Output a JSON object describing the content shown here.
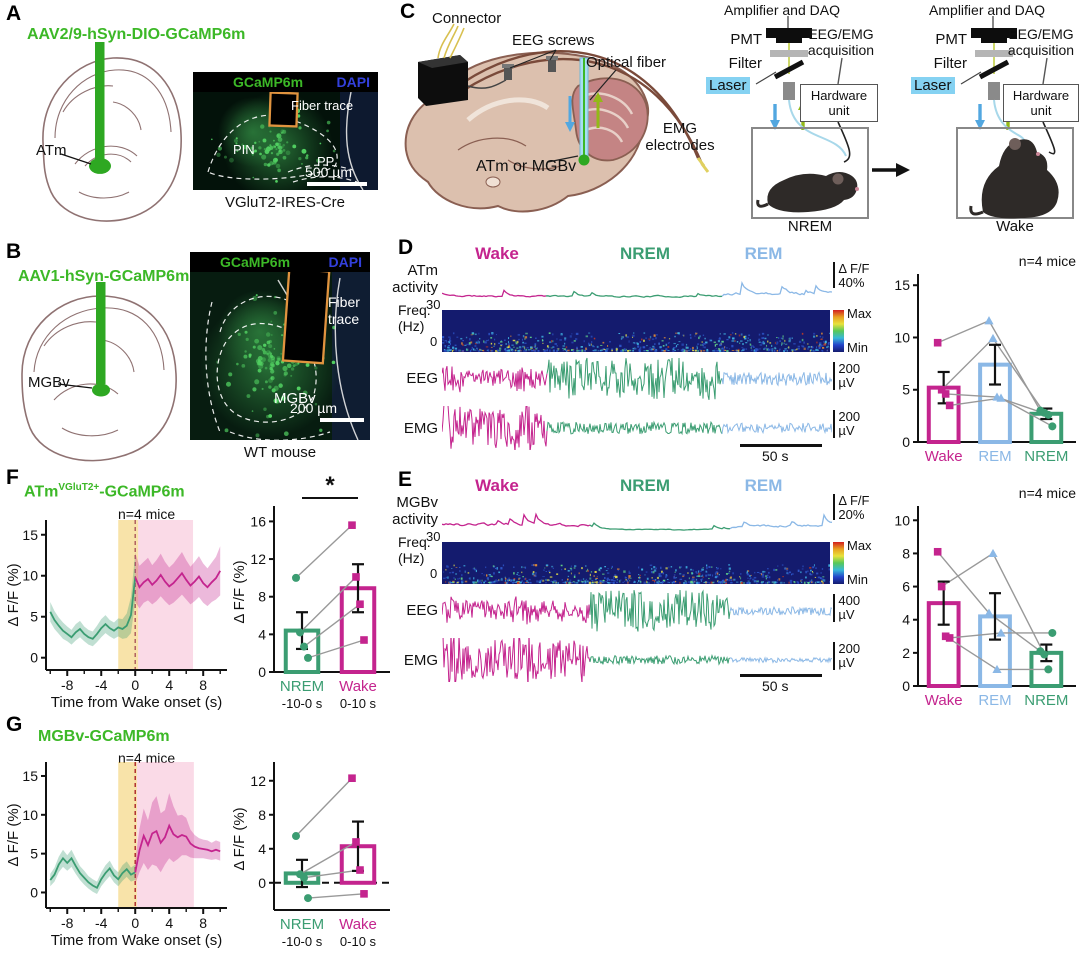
{
  "colors": {
    "wake_magenta": "#c4248e",
    "nrem_green": "#3b9d72",
    "rem_blue": "#8bb8e6",
    "gcamp_green": "#3cb827",
    "dapi_blue": "#3340dd",
    "fiber_orange": "#e0933f",
    "laser_bg": "#85d2f2",
    "spectrogram_bg": "#141b6e",
    "mouse_line_gray": "#999999"
  },
  "panel_a": {
    "label": "A",
    "title": "AAV2/9-hSyn-DIO-GCaMP6m",
    "region_label": "ATm",
    "image": {
      "marker_green": "GCaMP6m",
      "marker_blue": "DAPI",
      "fiber_label": "Fiber trace",
      "region1": "PIN",
      "region2": "PP",
      "scalebar": "500 µm",
      "caption": "VGluT2-IRES-Cre"
    }
  },
  "panel_b": {
    "label": "B",
    "title": "AAV1-hSyn-GCaMP6m",
    "region_label": "MGBv",
    "image": {
      "marker_green": "GCaMP6m",
      "marker_blue": "DAPI",
      "fiber_label": "Fiber trace",
      "region": "MGBv",
      "scalebar": "200 µm",
      "caption": "WT mouse"
    }
  },
  "panel_c": {
    "label": "C",
    "annotations": {
      "connector": "Connector",
      "eeg_screws": "EEG screws",
      "optical_fiber": "Optical fiber",
      "emg_electrodes": "EMG electrodes",
      "target": "ATm or MGBv"
    },
    "setups": [
      {
        "amplifier": "Amplifier and DAQ",
        "pmt": "PMT",
        "filter": "Filter",
        "laser": "Laser",
        "acquisition": "EEG/EMG acquisition",
        "hardware": "Hardware unit",
        "state": "NREM"
      },
      {
        "amplifier": "Amplifier and DAQ",
        "pmt": "PMT",
        "filter": "Filter",
        "laser": "Laser",
        "acquisition": "EEG/EMG acquisition",
        "hardware": "Hardware unit",
        "state": "Wake"
      }
    ]
  },
  "panel_d": {
    "label": "D",
    "trace_label1": "ATm",
    "trace_label2": "activity",
    "state_wake": "Wake",
    "state_nrem": "NREM",
    "state_rem": "REM",
    "dff1": "Δ F/F",
    "dff2": "40%",
    "freq_label": "Freq.",
    "freq_unit": "(Hz)",
    "freq_max": "30",
    "freq_min": "0",
    "cbar_max": "Max",
    "cbar_min": "Min",
    "eeg_label": "EEG",
    "eeg_scale": "200",
    "eeg_unit": "µV",
    "emg_label": "EMG",
    "emg_scale": "200",
    "emg_unit": "µV",
    "timebar": "50 s"
  },
  "panel_e": {
    "label": "E",
    "trace_label1": "MGBv",
    "trace_label2": "activity",
    "state_wake": "Wake",
    "state_nrem": "NREM",
    "state_rem": "REM",
    "dff1": "Δ F/F",
    "dff2": "20%",
    "freq_label": "Freq.",
    "freq_unit": "(Hz)",
    "freq_max": "30",
    "freq_min": "0",
    "cbar_max": "Max",
    "cbar_min": "Min",
    "eeg_label": "EEG",
    "eeg_scale": "400",
    "eeg_unit": "µV",
    "emg_label": "EMG",
    "emg_scale": "200",
    "emg_unit": "µV",
    "timebar": "50 s"
  },
  "panel_f": {
    "label": "F",
    "title_main": "ATm",
    "title_sup": "VGluT2+",
    "title_rest": "-GCaMP6m",
    "n_label": "n=4 mice"
  },
  "panel_g": {
    "label": "G",
    "title": "MGBv-GCaMP6m",
    "n_label": "n=4 mice"
  },
  "chart_data": [
    {
      "id": "d_traces",
      "type": "trace-panel",
      "panel": "D",
      "subject": "ATm activity",
      "states": [
        "Wake",
        "NREM",
        "REM"
      ],
      "state_colors": [
        "#c4248e",
        "#3b9d72",
        "#8bb8e6"
      ],
      "segment_fractions": [
        0.27,
        0.45,
        0.28
      ],
      "rows": [
        "ΔF/F activity",
        "Spectrogram Freq (Hz) 0-30",
        "EEG",
        "EMG"
      ],
      "dff_scalebar": "Δ F/F 40%",
      "freq_axis": {
        "min": 0,
        "max": 30
      },
      "colorbar": [
        "Max",
        "Min"
      ],
      "eeg_scalebar": "200 µV",
      "emg_scalebar": "200 µV",
      "time_scalebar": "50 s",
      "activity_amps": [
        0.55,
        0.5,
        0.9
      ],
      "eeg_amps": [
        0.45,
        1,
        0.32
      ],
      "emg_amps": [
        1,
        0.3,
        0.24
      ]
    },
    {
      "id": "d_bar",
      "type": "bar",
      "panel": "D",
      "annotation": "n=4 mice",
      "categories": [
        "Wake",
        "REM",
        "NREM"
      ],
      "bar_colors": [
        "#c4248e",
        "#8bb8e6",
        "#3b9d72"
      ],
      "markers": [
        "square",
        "triangle",
        "circle"
      ],
      "values": [
        5.2,
        7.4,
        2.7
      ],
      "errors": [
        1.5,
        1.9,
        0.5
      ],
      "mice": [
        [
          9.5,
          11.6,
          3.0
        ],
        [
          5.0,
          9.9,
          2.8
        ],
        [
          4.6,
          4.3,
          2.6
        ],
        [
          3.5,
          4.2,
          1.5
        ]
      ],
      "ylim": [
        0,
        15.5
      ],
      "yticks": [
        0,
        5,
        10,
        15
      ]
    },
    {
      "id": "e_traces",
      "type": "trace-panel",
      "panel": "E",
      "subject": "MGBv activity",
      "states": [
        "Wake",
        "NREM",
        "REM"
      ],
      "state_colors": [
        "#c4248e",
        "#3b9d72",
        "#8bb8e6"
      ],
      "segment_fractions": [
        0.38,
        0.36,
        0.26
      ],
      "rows": [
        "ΔF/F activity",
        "Spectrogram Freq (Hz) 0-30",
        "EEG",
        "EMG"
      ],
      "dff_scalebar": "Δ F/F 20%",
      "freq_axis": {
        "min": 0,
        "max": 30
      },
      "colorbar": [
        "Max",
        "Min"
      ],
      "eeg_scalebar": "400 µV",
      "emg_scalebar": "200 µV",
      "time_scalebar": "50 s",
      "activity_amps": [
        1,
        0.35,
        0.85
      ],
      "eeg_amps": [
        0.5,
        1,
        0.2
      ],
      "emg_amps": [
        1,
        0.22,
        0.12
      ]
    },
    {
      "id": "e_bar",
      "type": "bar",
      "panel": "E",
      "annotation": "n=4 mice",
      "categories": [
        "Wake",
        "REM",
        "NREM"
      ],
      "bar_colors": [
        "#c4248e",
        "#8bb8e6",
        "#3b9d72"
      ],
      "markers": [
        "square",
        "triangle",
        "circle"
      ],
      "values": [
        5.0,
        4.2,
        2.0
      ],
      "errors": [
        1.3,
        1.4,
        0.5
      ],
      "mice": [
        [
          8.1,
          4.4,
          2.1
        ],
        [
          6.0,
          8.0,
          1.9
        ],
        [
          3.0,
          1.0,
          1.0
        ],
        [
          2.9,
          3.2,
          3.2
        ]
      ],
      "ylim": [
        0,
        10.5
      ],
      "yticks": [
        0,
        2,
        4,
        6,
        8,
        10
      ]
    },
    {
      "id": "f_line",
      "type": "line",
      "panel": "F",
      "annotation": "n=4 mice",
      "xlabel": "Time from Wake onset (s)",
      "ylabel": "Δ F/F (%)",
      "xlim": [
        -10.5,
        10.8
      ],
      "ylim": [
        -1.5,
        16.8
      ],
      "xticks": [
        -8,
        -4,
        0,
        4,
        8
      ],
      "yticks": [
        0,
        5,
        10,
        15
      ],
      "shades": [
        {
          "x0": -2,
          "x1": 0.35,
          "color": "#f0c040",
          "opacity": 0.45
        },
        {
          "x0": 0.35,
          "x1": 6.8,
          "color": "#f2a2c4",
          "opacity": 0.4
        }
      ],
      "vline_x": 0,
      "vline_color": "#b06060",
      "series": [
        {
          "name": "NREM",
          "color": "#3b9d72",
          "x_start": -10,
          "x_step": 0.5,
          "mean": [
            5.6,
            4.6,
            3.9,
            3.3,
            2.9,
            2.5,
            3.1,
            3.5,
            2.9,
            2.5,
            2.3,
            2.9,
            3.6,
            4.1,
            3.6,
            3.3,
            3.7,
            3.5,
            3.9,
            5.2,
            9.8
          ],
          "sd": [
            1.2,
            1.1,
            1.0,
            1.0,
            0.9,
            0.9,
            1.0,
            1.0,
            0.9,
            0.9,
            0.9,
            1.0,
            1.1,
            1.1,
            1.0,
            1.0,
            1.1,
            1.2,
            1.5,
            2.2,
            3.0
          ]
        },
        {
          "name": "Wake",
          "color": "#c4248e",
          "x_start": 0,
          "x_step": 0.5,
          "mean": [
            9.8,
            8.6,
            9.2,
            9.6,
            8.9,
            9.4,
            10.1,
            9.3,
            8.7,
            9.1,
            9.7,
            10.3,
            9.5,
            8.8,
            9.3,
            9.9,
            9.1,
            8.6,
            9.2,
            9.7,
            10.6
          ],
          "sd": [
            3.0,
            2.6,
            2.5,
            2.6,
            2.4,
            2.5,
            2.6,
            2.4,
            2.3,
            2.4,
            2.5,
            2.6,
            2.4,
            2.3,
            2.4,
            2.5,
            2.4,
            2.3,
            2.4,
            2.6,
            3.0
          ]
        }
      ]
    },
    {
      "id": "f_bar",
      "type": "bar",
      "panel": "F",
      "ylabel": "Δ F/F (%)",
      "significance": "*",
      "categories": [
        "NREM",
        "Wake"
      ],
      "sub_labels": [
        "-10-0 s",
        "0-10 s"
      ],
      "bar_colors": [
        "#3b9d72",
        "#c4248e"
      ],
      "markers": [
        "circle",
        "square"
      ],
      "values": [
        4.4,
        8.9
      ],
      "errors": [
        1.95,
        2.55
      ],
      "mice": [
        [
          10.0,
          15.6
        ],
        [
          4.2,
          10.1
        ],
        [
          2.7,
          7.2
        ],
        [
          1.5,
          3.4
        ]
      ],
      "ylim": [
        0,
        17
      ],
      "yticks": [
        0,
        4,
        8,
        12,
        16
      ]
    },
    {
      "id": "g_line",
      "type": "line",
      "panel": "G",
      "annotation": "n=4 mice",
      "xlabel": "Time from Wake onset (s)",
      "ylabel": "Δ F/F (%)",
      "xlim": [
        -10.5,
        10.8
      ],
      "ylim": [
        -2,
        16.8
      ],
      "xticks": [
        -8,
        -4,
        0,
        4,
        8
      ],
      "yticks": [
        0,
        5,
        10,
        15
      ],
      "shades": [
        {
          "x0": -2,
          "x1": 0.2,
          "color": "#f0c040",
          "opacity": 0.45
        },
        {
          "x0": 0.2,
          "x1": 6.9,
          "color": "#f2a2c4",
          "opacity": 0.4
        }
      ],
      "vline_x": 0,
      "vline_color": "#b03030",
      "series": [
        {
          "name": "NREM",
          "color": "#3b9d72",
          "x_start": -10,
          "x_step": 0.5,
          "mean": [
            1.6,
            2.3,
            3.6,
            4.4,
            3.8,
            4.4,
            3.4,
            2.5,
            1.9,
            1.3,
            0.9,
            0.6,
            1.7,
            2.5,
            3.1,
            2.2,
            1.7,
            2.5,
            3.0,
            2.3,
            2.6
          ],
          "sd": [
            0.8,
            0.9,
            1.0,
            1.1,
            1.0,
            1.1,
            1.0,
            0.9,
            0.9,
            0.8,
            0.8,
            0.8,
            0.9,
            1.0,
            1.0,
            0.9,
            0.9,
            1.0,
            1.0,
            0.9,
            1.0
          ]
        },
        {
          "name": "Wake",
          "color": "#c4248e",
          "x_start": 0,
          "x_step": 0.5,
          "mean": [
            2.6,
            5.4,
            7.3,
            6.1,
            7.6,
            7.9,
            6.4,
            7.1,
            8.6,
            7.5,
            7.1,
            7.4,
            7.2,
            6.3,
            5.9,
            5.7,
            5.6,
            5.5,
            5.3,
            5.5,
            5.3
          ],
          "sd": [
            1.5,
            2.8,
            3.5,
            3.2,
            4.0,
            4.5,
            3.8,
            3.5,
            4.2,
            3.6,
            2.8,
            2.6,
            2.4,
            1.8,
            1.5,
            1.3,
            1.2,
            1.2,
            1.1,
            1.2,
            1.2
          ]
        }
      ]
    },
    {
      "id": "g_bar",
      "type": "bar",
      "panel": "G",
      "ylabel": "Δ F/F (%)",
      "zero_dashed": true,
      "categories": [
        "NREM",
        "Wake"
      ],
      "sub_labels": [
        "-10-0 s",
        "0-10 s"
      ],
      "bar_colors": [
        "#3b9d72",
        "#c4248e"
      ],
      "markers": [
        "circle",
        "square"
      ],
      "values": [
        1.1,
        4.3
      ],
      "errors": [
        1.6,
        2.9
      ],
      "mice": [
        [
          5.5,
          12.3
        ],
        [
          1.0,
          4.8
        ],
        [
          0.6,
          1.5
        ],
        [
          -1.8,
          -1.3
        ]
      ],
      "ylim": [
        -3.2,
        13.5
      ],
      "yticks": [
        0,
        4,
        8,
        12
      ]
    }
  ]
}
